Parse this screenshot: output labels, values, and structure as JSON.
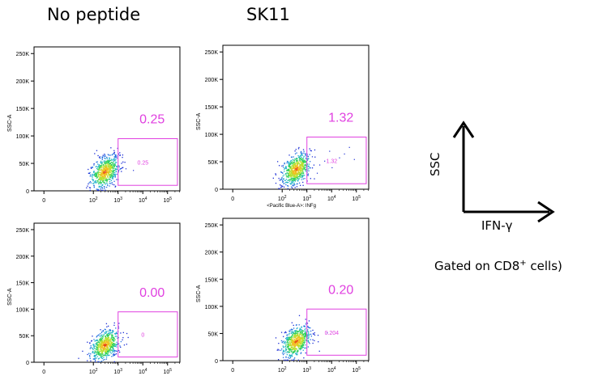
{
  "columns": [
    "No peptide",
    "SK11"
  ],
  "legend": {
    "y_label": "SSC",
    "x_label": "IFN-γ",
    "gate_prefix": "Gated on CD8",
    "gate_sup": "+",
    "gate_suffix": " cells)"
  },
  "colors": {
    "gate": "#e040e0",
    "frame": "#000000"
  },
  "chart_data": [
    {
      "type": "scatter",
      "row": 0,
      "col": 0,
      "ylabel": "SSC-A",
      "xlabel": "",
      "big_label": "0.25",
      "gate_label": "0.25",
      "yticks": [
        "0",
        "50K",
        "100K",
        "150K",
        "200K",
        "250K"
      ],
      "xticks": [
        "0",
        "10^2",
        "10^3",
        "10^4",
        "10^5"
      ],
      "ylim": [
        0,
        262144
      ],
      "gate": {
        "x": [
          3.0,
          5.4
        ],
        "y": [
          10000,
          95000
        ]
      },
      "cluster": {
        "cx": 2.45,
        "cy": 35000,
        "outliers": [
          [
            3.3,
            41000
          ],
          [
            3.6,
            38000
          ]
        ]
      }
    },
    {
      "type": "scatter",
      "row": 0,
      "col": 1,
      "ylabel": "SSC-A",
      "xlabel": "<Pacific Blue-A>: INFg",
      "big_label": "1.32",
      "gate_label": "1.32",
      "yticks": [
        "0",
        "50K",
        "100K",
        "150K",
        "200K",
        "250K"
      ],
      "xticks": [
        "0",
        "10^2",
        "10^3",
        "10^4",
        "10^5"
      ],
      "ylim": [
        0,
        262144
      ],
      "gate": {
        "x": [
          3.0,
          5.4
        ],
        "y": [
          10000,
          95000
        ]
      },
      "cluster": {
        "cx": 2.55,
        "cy": 37000,
        "outliers": [
          [
            3.2,
            60000
          ],
          [
            3.5,
            45000
          ],
          [
            3.9,
            70000
          ],
          [
            4.3,
            58000
          ],
          [
            4.7,
            77000
          ],
          [
            4.0,
            40000
          ],
          [
            3.4,
            30000
          ],
          [
            4.5,
            65000
          ],
          [
            3.7,
            52000
          ],
          [
            4.9,
            55000
          ]
        ]
      }
    },
    {
      "type": "scatter",
      "row": 1,
      "col": 0,
      "ylabel": "SSC-A",
      "xlabel": "",
      "big_label": "0.00",
      "gate_label": "0",
      "yticks": [
        "0",
        "50K",
        "100K",
        "150K",
        "200K",
        "250K"
      ],
      "xticks": [
        "0",
        "10^2",
        "10^3",
        "10^4",
        "10^5"
      ],
      "ylim": [
        0,
        262144
      ],
      "gate": {
        "x": [
          3.0,
          5.4
        ],
        "y": [
          10000,
          95000
        ]
      },
      "cluster": {
        "cx": 2.45,
        "cy": 33000,
        "outliers": []
      }
    },
    {
      "type": "scatter",
      "row": 1,
      "col": 1,
      "ylabel": "SSC-A",
      "xlabel": "",
      "big_label": "0.20",
      "gate_label": "0.204",
      "yticks": [
        "0",
        "50K",
        "100K",
        "150K",
        "200K",
        "250K"
      ],
      "xticks": [
        "0",
        "10^2",
        "10^3",
        "10^4",
        "10^5"
      ],
      "ylim": [
        0,
        262144
      ],
      "gate": {
        "x": [
          3.0,
          5.4
        ],
        "y": [
          10000,
          95000
        ]
      },
      "cluster": {
        "cx": 2.55,
        "cy": 36000,
        "outliers": [
          [
            3.3,
            48000
          ],
          [
            3.8,
            52000
          ]
        ]
      }
    }
  ]
}
